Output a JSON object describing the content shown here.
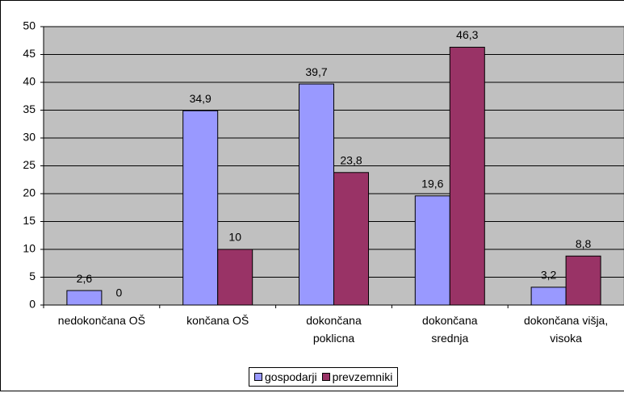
{
  "chart_data": {
    "type": "bar",
    "categories": [
      "nedokončana OŠ",
      "končana OŠ",
      "dokončana\npoklicna",
      "dokončana\nsrednja",
      "dokončana višja,\nvisoka"
    ],
    "series": [
      {
        "name": "gospodarji",
        "color": "#9999ff",
        "values": [
          2.6,
          34.9,
          39.7,
          19.6,
          3.2
        ],
        "value_labels": [
          "2,6",
          "34,9",
          "39,7",
          "19,6",
          "3,2"
        ]
      },
      {
        "name": "prevzemniki",
        "color": "#993366",
        "values": [
          0,
          10,
          23.8,
          46.3,
          8.8
        ],
        "value_labels": [
          "0",
          "10",
          "23,8",
          "46,3",
          "8,8"
        ]
      }
    ],
    "ylim": [
      0,
      50
    ],
    "yticks": [
      0,
      5,
      10,
      15,
      20,
      25,
      30,
      35,
      40,
      45,
      50
    ],
    "grid": true,
    "legend": "bottom"
  }
}
